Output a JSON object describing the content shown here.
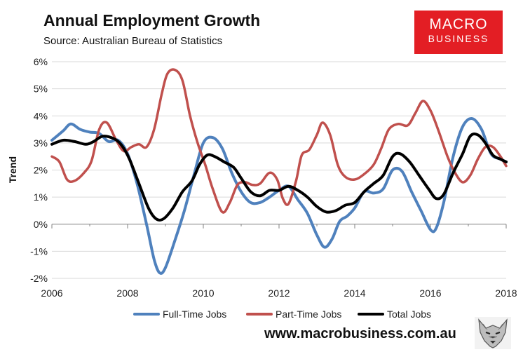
{
  "header": {
    "title": "Annual Employment Growth",
    "subtitle": "Source: Australian Bureau of Statistics"
  },
  "logo": {
    "line1": "MACRO",
    "line2": "BUSINESS"
  },
  "footer": {
    "site": "www.macrobusiness.com.au"
  },
  "colors": {
    "full_time": "#4f81bd",
    "part_time": "#c0504d",
    "total": "#000000"
  },
  "chart_data": {
    "type": "line",
    "title": "Annual Employment Growth",
    "ylabel": "Trend",
    "xlabel": "",
    "xlim": [
      2006,
      2018
    ],
    "ylim": [
      -2,
      6
    ],
    "y_ticks": [
      -2,
      -1,
      0,
      1,
      2,
      3,
      4,
      5,
      6
    ],
    "y_tick_labels": [
      "-2%",
      "-1%",
      "0%",
      "1%",
      "2%",
      "3%",
      "4%",
      "5%",
      "6%"
    ],
    "x_tick_labels": [
      "2006",
      "2008",
      "2010",
      "2012",
      "2014",
      "2016",
      "2018"
    ],
    "legend_position": "bottom",
    "series": [
      {
        "name": "Full-Time Jobs",
        "color": "#4f81bd",
        "points": [
          [
            2006.0,
            3.1
          ],
          [
            2006.3,
            3.45
          ],
          [
            2006.5,
            3.7
          ],
          [
            2006.75,
            3.5
          ],
          [
            2007.0,
            3.4
          ],
          [
            2007.25,
            3.35
          ],
          [
            2007.5,
            3.05
          ],
          [
            2007.75,
            3.1
          ],
          [
            2008.0,
            2.6
          ],
          [
            2008.25,
            1.5
          ],
          [
            2008.5,
            0.0
          ],
          [
            2008.7,
            -1.3
          ],
          [
            2008.85,
            -1.8
          ],
          [
            2009.0,
            -1.6
          ],
          [
            2009.25,
            -0.6
          ],
          [
            2009.5,
            0.5
          ],
          [
            2009.75,
            1.8
          ],
          [
            2010.0,
            3.0
          ],
          [
            2010.25,
            3.2
          ],
          [
            2010.5,
            2.8
          ],
          [
            2010.75,
            1.9
          ],
          [
            2011.0,
            1.2
          ],
          [
            2011.25,
            0.8
          ],
          [
            2011.5,
            0.8
          ],
          [
            2011.75,
            1.0
          ],
          [
            2012.0,
            1.25
          ],
          [
            2012.25,
            1.4
          ],
          [
            2012.5,
            0.9
          ],
          [
            2012.75,
            0.4
          ],
          [
            2013.0,
            -0.4
          ],
          [
            2013.2,
            -0.85
          ],
          [
            2013.4,
            -0.55
          ],
          [
            2013.6,
            0.1
          ],
          [
            2013.8,
            0.3
          ],
          [
            2014.0,
            0.6
          ],
          [
            2014.25,
            1.2
          ],
          [
            2014.5,
            1.15
          ],
          [
            2014.75,
            1.3
          ],
          [
            2015.0,
            2.0
          ],
          [
            2015.25,
            1.95
          ],
          [
            2015.5,
            1.2
          ],
          [
            2015.75,
            0.5
          ],
          [
            2016.0,
            -0.2
          ],
          [
            2016.15,
            -0.15
          ],
          [
            2016.35,
            0.8
          ],
          [
            2016.6,
            2.5
          ],
          [
            2016.85,
            3.6
          ],
          [
            2017.1,
            3.9
          ],
          [
            2017.35,
            3.5
          ],
          [
            2017.6,
            2.6
          ],
          [
            2017.85,
            2.4
          ],
          [
            2018.0,
            2.3
          ]
        ]
      },
      {
        "name": "Part-Time Jobs",
        "color": "#c0504d",
        "points": [
          [
            2006.0,
            2.5
          ],
          [
            2006.2,
            2.3
          ],
          [
            2006.4,
            1.65
          ],
          [
            2006.6,
            1.6
          ],
          [
            2006.85,
            1.9
          ],
          [
            2007.05,
            2.35
          ],
          [
            2007.25,
            3.5
          ],
          [
            2007.45,
            3.75
          ],
          [
            2007.7,
            3.1
          ],
          [
            2007.9,
            2.7
          ],
          [
            2008.1,
            2.85
          ],
          [
            2008.3,
            2.95
          ],
          [
            2008.5,
            2.85
          ],
          [
            2008.7,
            3.5
          ],
          [
            2008.9,
            4.8
          ],
          [
            2009.05,
            5.55
          ],
          [
            2009.25,
            5.7
          ],
          [
            2009.45,
            5.3
          ],
          [
            2009.65,
            4.0
          ],
          [
            2009.85,
            3.0
          ],
          [
            2010.05,
            2.2
          ],
          [
            2010.25,
            1.3
          ],
          [
            2010.5,
            0.45
          ],
          [
            2010.7,
            0.8
          ],
          [
            2010.9,
            1.45
          ],
          [
            2011.1,
            1.55
          ],
          [
            2011.3,
            1.45
          ],
          [
            2011.5,
            1.5
          ],
          [
            2011.75,
            1.9
          ],
          [
            2011.95,
            1.65
          ],
          [
            2012.1,
            0.95
          ],
          [
            2012.25,
            0.75
          ],
          [
            2012.45,
            1.6
          ],
          [
            2012.6,
            2.55
          ],
          [
            2012.8,
            2.75
          ],
          [
            2013.0,
            3.3
          ],
          [
            2013.15,
            3.75
          ],
          [
            2013.35,
            3.3
          ],
          [
            2013.55,
            2.2
          ],
          [
            2013.75,
            1.75
          ],
          [
            2014.0,
            1.65
          ],
          [
            2014.25,
            1.85
          ],
          [
            2014.5,
            2.2
          ],
          [
            2014.7,
            2.8
          ],
          [
            2014.9,
            3.5
          ],
          [
            2015.15,
            3.7
          ],
          [
            2015.4,
            3.65
          ],
          [
            2015.6,
            4.1
          ],
          [
            2015.8,
            4.55
          ],
          [
            2016.0,
            4.2
          ],
          [
            2016.2,
            3.5
          ],
          [
            2016.45,
            2.5
          ],
          [
            2016.65,
            1.9
          ],
          [
            2016.85,
            1.55
          ],
          [
            2017.05,
            1.8
          ],
          [
            2017.25,
            2.4
          ],
          [
            2017.45,
            2.85
          ],
          [
            2017.65,
            2.85
          ],
          [
            2017.85,
            2.5
          ],
          [
            2018.0,
            2.15
          ]
        ]
      },
      {
        "name": "Total Jobs",
        "color": "#000000",
        "points": [
          [
            2006.0,
            2.95
          ],
          [
            2006.3,
            3.1
          ],
          [
            2006.6,
            3.05
          ],
          [
            2006.9,
            2.95
          ],
          [
            2007.1,
            3.05
          ],
          [
            2007.35,
            3.25
          ],
          [
            2007.65,
            3.15
          ],
          [
            2007.85,
            2.9
          ],
          [
            2008.05,
            2.4
          ],
          [
            2008.3,
            1.5
          ],
          [
            2008.55,
            0.6
          ],
          [
            2008.75,
            0.2
          ],
          [
            2008.95,
            0.2
          ],
          [
            2009.2,
            0.6
          ],
          [
            2009.45,
            1.2
          ],
          [
            2009.7,
            1.6
          ],
          [
            2009.9,
            2.2
          ],
          [
            2010.1,
            2.55
          ],
          [
            2010.3,
            2.5
          ],
          [
            2010.55,
            2.3
          ],
          [
            2010.8,
            2.1
          ],
          [
            2011.0,
            1.7
          ],
          [
            2011.25,
            1.2
          ],
          [
            2011.5,
            1.05
          ],
          [
            2011.75,
            1.25
          ],
          [
            2012.0,
            1.25
          ],
          [
            2012.25,
            1.4
          ],
          [
            2012.5,
            1.25
          ],
          [
            2012.75,
            1.0
          ],
          [
            2013.0,
            0.65
          ],
          [
            2013.25,
            0.45
          ],
          [
            2013.5,
            0.5
          ],
          [
            2013.75,
            0.7
          ],
          [
            2014.0,
            0.8
          ],
          [
            2014.25,
            1.2
          ],
          [
            2014.5,
            1.5
          ],
          [
            2014.75,
            1.8
          ],
          [
            2015.0,
            2.5
          ],
          [
            2015.2,
            2.6
          ],
          [
            2015.45,
            2.3
          ],
          [
            2015.7,
            1.8
          ],
          [
            2015.95,
            1.3
          ],
          [
            2016.15,
            0.95
          ],
          [
            2016.35,
            1.1
          ],
          [
            2016.6,
            1.9
          ],
          [
            2016.85,
            2.6
          ],
          [
            2017.05,
            3.25
          ],
          [
            2017.25,
            3.3
          ],
          [
            2017.45,
            3.0
          ],
          [
            2017.65,
            2.55
          ],
          [
            2017.85,
            2.4
          ],
          [
            2018.0,
            2.3
          ]
        ]
      }
    ]
  }
}
